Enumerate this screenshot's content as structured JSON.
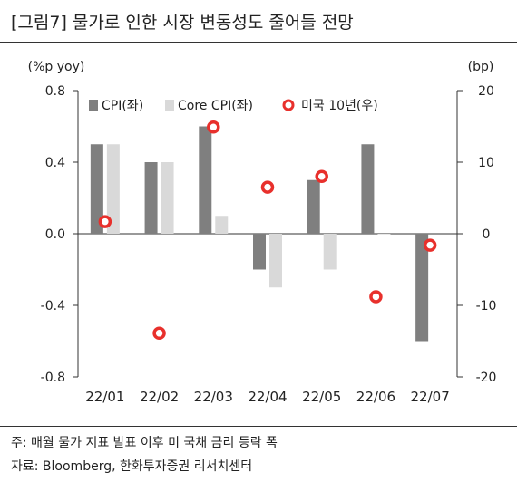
{
  "header": {
    "title": "[그림7]    물가로 인한 시장 변동성도 줄어들 전망"
  },
  "footer": {
    "note": "주: 매월 물가 지표 발표 이후 미 국채 금리 등락 폭",
    "source": "자료: Bloomberg, 한화투자증권 리서치센터"
  },
  "colors": {
    "cpi": "#7f7f7f",
    "core_cpi": "#d9d9d9",
    "us10y_stroke": "#e8302c",
    "us10y_fill": "#ffffff"
  },
  "chart_data": {
    "type": "bar",
    "categories": [
      "22/01",
      "22/02",
      "22/03",
      "22/04",
      "22/05",
      "22/06",
      "22/07"
    ],
    "left_axis": {
      "unit": "(%p yoy)",
      "ylim": [
        -0.8,
        0.8
      ],
      "ticks": [
        "0.8",
        "0.4",
        "0.0",
        "-0.4",
        "-0.8"
      ]
    },
    "right_axis": {
      "unit": "(bp)",
      "ylim": [
        -20,
        20
      ],
      "ticks": [
        "20",
        "10",
        "0",
        "-10",
        "-20"
      ]
    },
    "series": [
      {
        "name": "CPI(좌)",
        "type": "bar",
        "axis": "left",
        "values": [
          0.5,
          0.4,
          0.6,
          -0.2,
          0.3,
          0.5,
          -0.6
        ]
      },
      {
        "name": "Core  CPI(좌)",
        "type": "bar",
        "axis": "left",
        "values": [
          0.5,
          0.4,
          0.1,
          -0.3,
          -0.2,
          0.0,
          null
        ]
      },
      {
        "name": "미국  10년(우)",
        "type": "scatter",
        "axis": "right",
        "values": [
          1.7,
          -13.9,
          14.9,
          6.5,
          8.0,
          -8.8,
          -1.6
        ]
      }
    ],
    "legend_position": "top",
    "grid": false
  }
}
